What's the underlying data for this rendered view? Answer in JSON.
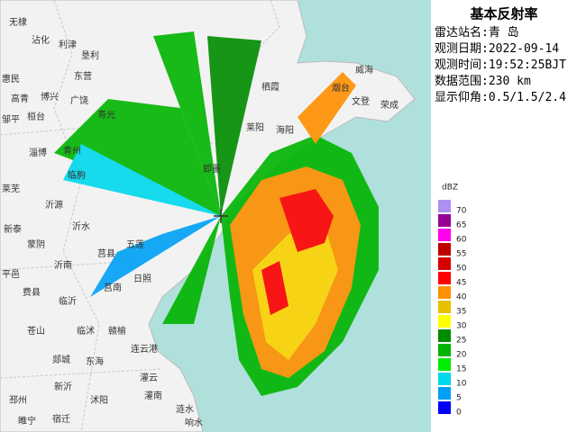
{
  "panel": {
    "title": "基本反射率",
    "info": [
      "雷达站名:青 岛",
      "观测日期:2022-09-14",
      "观测时间:19:52:25BJT",
      "数据范围:230 km",
      "显示仰角:0.5/1.5/2.4"
    ]
  },
  "legend": {
    "unit": "dBZ",
    "items": [
      {
        "value": 70,
        "color": "#ad90f0"
      },
      {
        "value": 65,
        "color": "#960096"
      },
      {
        "value": 60,
        "color": "#ff00f0"
      },
      {
        "value": 55,
        "color": "#c00000"
      },
      {
        "value": 50,
        "color": "#d60000"
      },
      {
        "value": 45,
        "color": "#ff0000"
      },
      {
        "value": 40,
        "color": "#ff9000"
      },
      {
        "value": 35,
        "color": "#e7c000"
      },
      {
        "value": 30,
        "color": "#ffff00"
      },
      {
        "value": 25,
        "color": "#008c00"
      },
      {
        "value": 20,
        "color": "#00b400"
      },
      {
        "value": 15,
        "color": "#00ec00"
      },
      {
        "value": 10,
        "color": "#00d8ec"
      },
      {
        "value": 5,
        "color": "#00a0f6"
      },
      {
        "value": 0,
        "color": "#0000f6"
      }
    ]
  },
  "places": [
    "无棣",
    "沾化",
    "利津",
    "垦利",
    "东营",
    "惠民",
    "高青",
    "博兴",
    "广饶",
    "邹平",
    "桓台",
    "寿光",
    "淄博",
    "青州",
    "临朐",
    "莱芜",
    "沂源",
    "沂水",
    "新泰",
    "蒙阴",
    "沂南",
    "莒县",
    "五莲",
    "平邑",
    "费县",
    "临沂",
    "莒南",
    "日照",
    "苍山",
    "临沭",
    "赣榆",
    "连云港",
    "郯城",
    "东海",
    "灌云",
    "邳州",
    "新沂",
    "沭阳",
    "灌南",
    "睢宁",
    "宿迁",
    "涟水",
    "响水",
    "栖霞",
    "烟台",
    "威海",
    "文登",
    "荣成",
    "莱阳",
    "海阳",
    "即墨"
  ]
}
